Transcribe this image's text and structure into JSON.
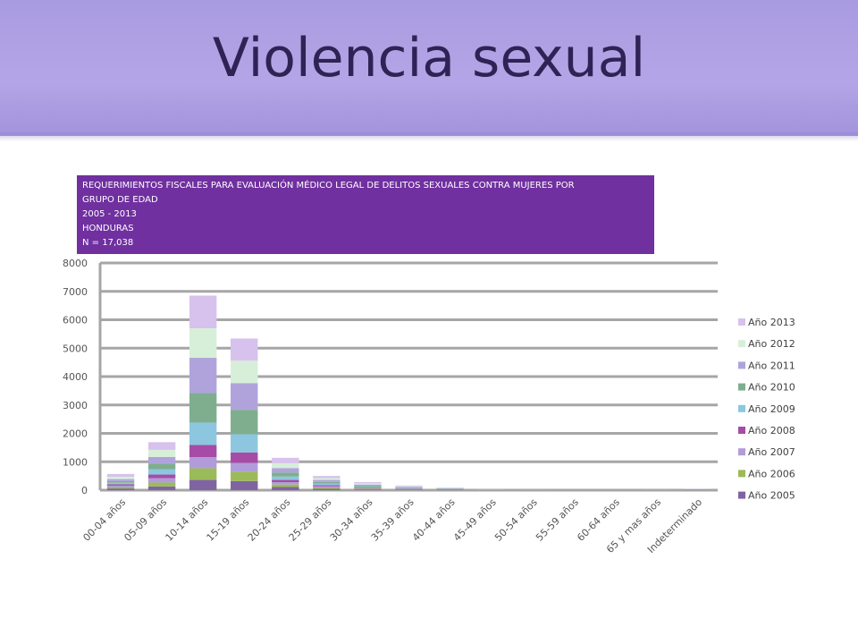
{
  "slide": {
    "title": "Violencia sexual"
  },
  "chart_header": {
    "line1": "REQUERIMIENTOS FISCALES PARA EVALUACIÓN MÉDICO LEGAL DE DELITOS SEXUALES CONTRA MUJERES POR",
    "line2": "GRUPO DE EDAD",
    "line3": "2005 - 2013",
    "line4": "HONDURAS",
    "line5": "N = 17,038"
  },
  "chart_data": {
    "type": "bar",
    "stacked": true,
    "title": "REQUERIMIENTOS FISCALES PARA EVALUACIÓN MÉDICO LEGAL DE DELITOS SEXUALES CONTRA MUJERES POR GRUPO DE EDAD 2005 - 2013 HONDURAS N = 17,038",
    "categories": [
      "00-04 años",
      "05-09 años",
      "10-14 años",
      "15-19 años",
      "20-24 años",
      "25-29 años",
      "30-34 años",
      "35-39 años",
      "40-44 años",
      "45-49 años",
      "50-54 años",
      "55-59 años",
      "60-64 años",
      "65 y mas años",
      "Indeterminado"
    ],
    "ylim": [
      0,
      8000
    ],
    "yticks": [
      0,
      1000,
      2000,
      3000,
      4000,
      5000,
      6000,
      7000,
      8000
    ],
    "ytick_labels": [
      "0",
      "1000",
      "2000",
      "3000",
      "4000",
      "5000",
      "6000",
      "7000",
      "8000"
    ],
    "grid": true,
    "legend_position": "right",
    "series": [
      {
        "name": "Año 2005",
        "color": "#8064a2",
        "values": [
          60,
          130,
          360,
          320,
          110,
          50,
          25,
          15,
          10,
          3,
          2,
          1,
          1,
          2,
          5
        ]
      },
      {
        "name": "Año 2006",
        "color": "#9bbb59",
        "values": [
          50,
          140,
          410,
          330,
          90,
          45,
          25,
          15,
          8,
          3,
          2,
          1,
          1,
          2,
          5
        ]
      },
      {
        "name": "Año 2007",
        "color": "#b19cd9",
        "values": [
          50,
          150,
          390,
          310,
          80,
          40,
          25,
          15,
          8,
          3,
          2,
          1,
          1,
          2,
          5
        ]
      },
      {
        "name": "Año 2008",
        "color": "#a64ca6",
        "values": [
          45,
          130,
          430,
          370,
          80,
          40,
          20,
          12,
          8,
          3,
          2,
          1,
          1,
          2,
          5
        ]
      },
      {
        "name": "Año 2009",
        "color": "#8cc7df",
        "values": [
          55,
          190,
          790,
          640,
          120,
          55,
          30,
          18,
          10,
          4,
          2,
          1,
          1,
          2,
          5
        ]
      },
      {
        "name": "Año 2010",
        "color": "#7fae8f",
        "values": [
          60,
          200,
          1040,
          860,
          140,
          60,
          35,
          20,
          12,
          4,
          2,
          1,
          1,
          2,
          5
        ]
      },
      {
        "name": "Año 2011",
        "color": "#b0a3dc",
        "values": [
          70,
          230,
          1240,
          940,
          160,
          70,
          40,
          22,
          12,
          4,
          2,
          1,
          1,
          2,
          5
        ]
      },
      {
        "name": "Año 2012",
        "color": "#d7efd9",
        "values": [
          80,
          250,
          1040,
          790,
          170,
          65,
          40,
          22,
          12,
          4,
          2,
          1,
          1,
          2,
          5
        ]
      },
      {
        "name": "Año 2013",
        "color": "#d6c2ec",
        "values": [
          100,
          270,
          1150,
          780,
          190,
          75,
          45,
          25,
          15,
          5,
          3,
          1,
          1,
          3,
          10
        ]
      }
    ]
  }
}
